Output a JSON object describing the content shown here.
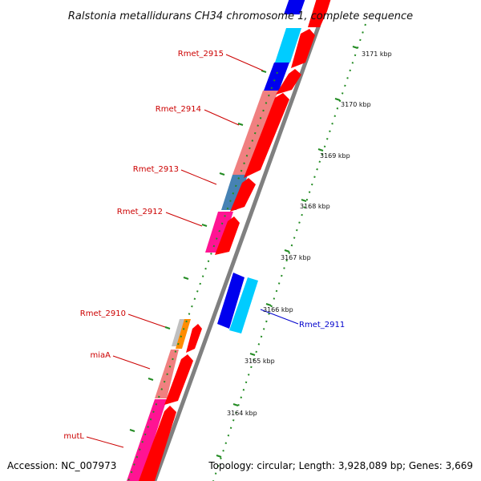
{
  "title": "Ralstonia metallidurans CH34 chromosome 1, complete sequence",
  "accession": "Accession: NC_007973",
  "topology": "Topology: circular; Length: 3,928,089 bp; Genes: 3,669",
  "colors": {
    "label_default": "#cc0000",
    "label_highlight": "#0000cc",
    "backbone": "#808080",
    "tick": "#228b22"
  },
  "kbp_ticks": [
    {
      "label": "3171 kbp"
    },
    {
      "label": "3170 kbp"
    },
    {
      "label": "3169 kbp"
    },
    {
      "label": "3168 kbp"
    },
    {
      "label": "3167 kbp"
    },
    {
      "label": "3166 kbp"
    },
    {
      "label": "3165 kbp"
    },
    {
      "label": "3164 kbp"
    }
  ],
  "gene_labels": [
    {
      "name": "Rmet_2915",
      "color": "#cc0000"
    },
    {
      "name": "Rmet_2914",
      "color": "#cc0000"
    },
    {
      "name": "Rmet_2913",
      "color": "#cc0000"
    },
    {
      "name": "Rmet_2912",
      "color": "#cc0000"
    },
    {
      "name": "Rmet_2910",
      "color": "#cc0000"
    },
    {
      "name": "miaA",
      "color": "#cc0000"
    },
    {
      "name": "mutL",
      "color": "#cc0000"
    },
    {
      "name": "Rmet_2911",
      "color": "#0000cc"
    }
  ],
  "gene_blocks": [
    {
      "color": "#0000ee",
      "track": "inner"
    },
    {
      "color": "#ff0000",
      "track": "outer"
    },
    {
      "color": "#00ccff",
      "track": "inner"
    },
    {
      "color": "#ff0000",
      "track": "outer"
    },
    {
      "color": "#0000ee",
      "track": "inner"
    },
    {
      "color": "#ff0000",
      "track": "outer"
    },
    {
      "color": "#f08080",
      "track": "inner"
    },
    {
      "color": "#ff0000",
      "track": "outer"
    },
    {
      "color": "#4682b4",
      "track": "inner"
    },
    {
      "color": "#ff0000",
      "track": "outer"
    },
    {
      "color": "#ff1493",
      "track": "inner"
    },
    {
      "color": "#ff0000",
      "track": "outer"
    },
    {
      "color": "#0000ee",
      "track": "right-1"
    },
    {
      "color": "#00ccff",
      "track": "right-2"
    },
    {
      "color": "#c0c0c0",
      "track": "inner"
    },
    {
      "color": "#ff8c00",
      "track": "inner"
    },
    {
      "color": "#ff0000",
      "track": "outer"
    },
    {
      "color": "#f08080",
      "track": "inner"
    },
    {
      "color": "#ff0000",
      "track": "outer"
    },
    {
      "color": "#ff1493",
      "track": "inner"
    },
    {
      "color": "#ff0000",
      "track": "outer"
    }
  ]
}
